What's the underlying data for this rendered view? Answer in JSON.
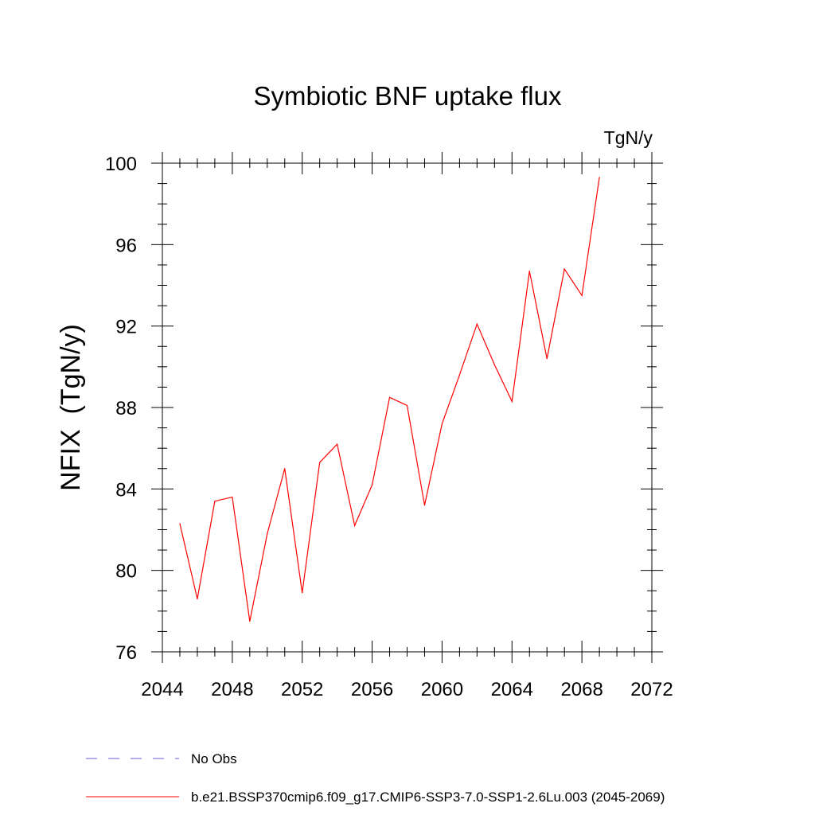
{
  "chart_data": {
    "type": "line",
    "title": "Symbiotic BNF uptake flux",
    "units_label": "TgN/y",
    "xlabel": "",
    "ylabel": "NFIX  (TgN/y)",
    "xlim": [
      2044,
      2072
    ],
    "ylim": [
      76,
      100
    ],
    "x_ticks": [
      2044,
      2048,
      2052,
      2056,
      2060,
      2064,
      2068,
      2072
    ],
    "y_ticks": [
      76,
      80,
      84,
      88,
      92,
      96,
      100
    ],
    "x_minor_step": 1,
    "y_minor_step": 1,
    "series": [
      {
        "name": "b.e21.BSSP370cmip6.f09_g17.CMIP6-SSP3-7.0-SSP1-2.6Lu.003 (2045-2069)",
        "color": "#ff0000",
        "x": [
          2045,
          2046,
          2047,
          2048,
          2049,
          2050,
          2051,
          2052,
          2053,
          2054,
          2055,
          2056,
          2057,
          2058,
          2059,
          2060,
          2061,
          2062,
          2063,
          2064,
          2065,
          2066,
          2067,
          2068,
          2069
        ],
        "values": [
          82.3,
          78.6,
          83.4,
          83.6,
          77.5,
          81.8,
          85.0,
          78.9,
          85.3,
          86.2,
          82.2,
          84.2,
          88.5,
          88.1,
          83.2,
          87.2,
          89.6,
          92.1,
          90.1,
          88.3,
          94.7,
          90.4,
          94.8,
          93.5,
          99.3
        ]
      }
    ],
    "legend": [
      {
        "label": "No Obs",
        "style": "dashed",
        "color": "#6a5acd"
      },
      {
        "label": "b.e21.BSSP370cmip6.f09_g17.CMIP6-SSP3-7.0-SSP1-2.6Lu.003 (2045-2069)",
        "style": "solid",
        "color": "#ff0000"
      }
    ],
    "legend_position": "bottom"
  }
}
